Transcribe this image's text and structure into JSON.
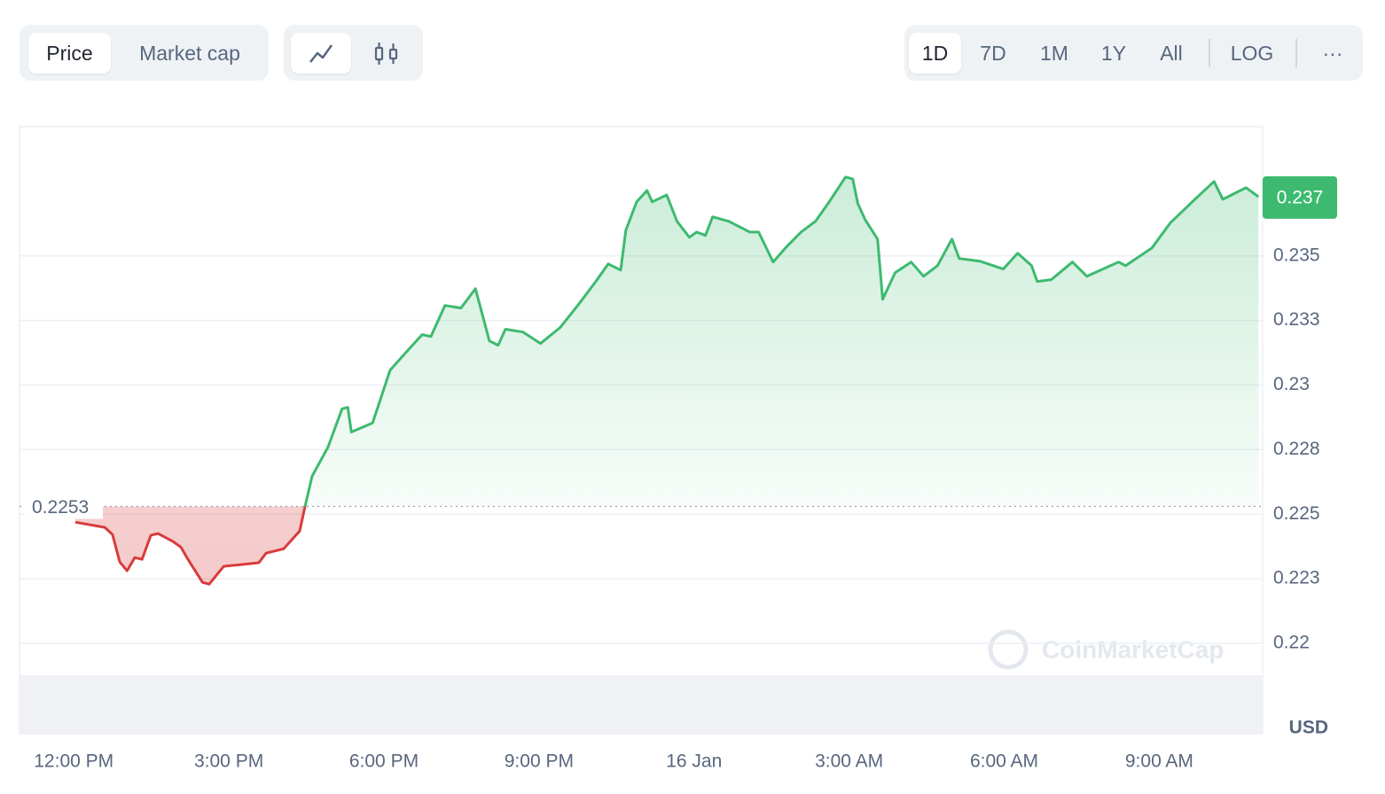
{
  "toolbar": {
    "metric_tabs": [
      "Price",
      "Market cap"
    ],
    "range_tabs": [
      "1D",
      "7D",
      "1M",
      "1Y",
      "All"
    ],
    "log": "LOG",
    "more": "···"
  },
  "chart_data": {
    "type": "line",
    "currency": "USD",
    "watermark": "CoinMarketCap",
    "up_color": "#3dba6f",
    "down_color": "#d93b3b",
    "reference_value": 0.2253,
    "current_price": {
      "value": 0.23726,
      "label": "0.237"
    },
    "xlim": [
      -1.05,
      23
    ],
    "ylim": [
      0.2165,
      0.24
    ],
    "xticks": [
      {
        "value": 0,
        "label": "12:00 PM"
      },
      {
        "value": 3,
        "label": "3:00 PM"
      },
      {
        "value": 6,
        "label": "6:00 PM"
      },
      {
        "value": 9,
        "label": "9:00 PM"
      },
      {
        "value": 12,
        "label": "16 Jan"
      },
      {
        "value": 15,
        "label": "3:00 AM"
      },
      {
        "value": 18,
        "label": "6:00 AM"
      },
      {
        "value": 21,
        "label": "9:00 AM"
      }
    ],
    "yticks": [
      0.22,
      {
        "value": 0.2225,
        "label": "0.223"
      },
      0.225,
      {
        "value": 0.2275,
        "label": "0.228"
      },
      0.23,
      {
        "value": 0.2325,
        "label": "0.233"
      },
      0.235
    ],
    "grid": true,
    "x": [
      0.03,
      0.6,
      0.75,
      0.89,
      1.03,
      1.18,
      1.32,
      1.49,
      1.63,
      1.92,
      2.07,
      2.21,
      2.49,
      2.62,
      2.9,
      3.24,
      3.58,
      3.72,
      4.06,
      4.37,
      4.47,
      4.61,
      4.92,
      5.19,
      5.3,
      5.37,
      5.78,
      6.12,
      6.43,
      6.74,
      6.91,
      7.18,
      7.49,
      7.77,
      8.04,
      8.21,
      8.35,
      8.69,
      9.03,
      9.41,
      9.75,
      10.1,
      10.34,
      10.58,
      10.68,
      10.89,
      11.09,
      11.19,
      11.47,
      11.67,
      11.91,
      12.05,
      12.22,
      12.36,
      12.67,
      13.08,
      13.25,
      13.53,
      13.77,
      14.07,
      14.35,
      14.59,
      14.93,
      15.07,
      15.17,
      15.31,
      15.55,
      15.65,
      15.89,
      16.2,
      16.44,
      16.71,
      16.99,
      17.13,
      17.54,
      17.98,
      18.26,
      18.53,
      18.64,
      18.91,
      19.32,
      19.6,
      20.21,
      20.35,
      20.86,
      21.21,
      21.69,
      22.06,
      22.23,
      22.68,
      22.92
    ],
    "values": [
      0.22469,
      0.22449,
      0.22421,
      0.22315,
      0.22281,
      0.22332,
      0.22325,
      0.22418,
      0.22425,
      0.22394,
      0.22373,
      0.22325,
      0.22236,
      0.22229,
      0.22298,
      0.22305,
      0.22312,
      0.22349,
      0.22366,
      0.22435,
      0.22527,
      0.22647,
      0.2276,
      0.22908,
      0.22914,
      0.22818,
      0.22853,
      0.23058,
      0.23127,
      0.23195,
      0.23188,
      0.23308,
      0.23298,
      0.23373,
      0.23171,
      0.23154,
      0.23216,
      0.23205,
      0.23161,
      0.23223,
      0.23308,
      0.23401,
      0.23469,
      0.23445,
      0.23599,
      0.23709,
      0.23753,
      0.23709,
      0.23736,
      0.23634,
      0.23572,
      0.23592,
      0.23579,
      0.23651,
      0.23634,
      0.23592,
      0.23592,
      0.23476,
      0.23531,
      0.23592,
      0.23634,
      0.23702,
      0.23805,
      0.23798,
      0.23702,
      0.2364,
      0.23565,
      0.23332,
      0.23435,
      0.23476,
      0.23421,
      0.23462,
      0.23565,
      0.2349,
      0.23479,
      0.23449,
      0.2351,
      0.23462,
      0.23401,
      0.23408,
      0.23476,
      0.23421,
      0.23476,
      0.23462,
      0.23531,
      0.23627,
      0.23719,
      0.23788,
      0.23719,
      0.23764,
      0.23729
    ]
  }
}
